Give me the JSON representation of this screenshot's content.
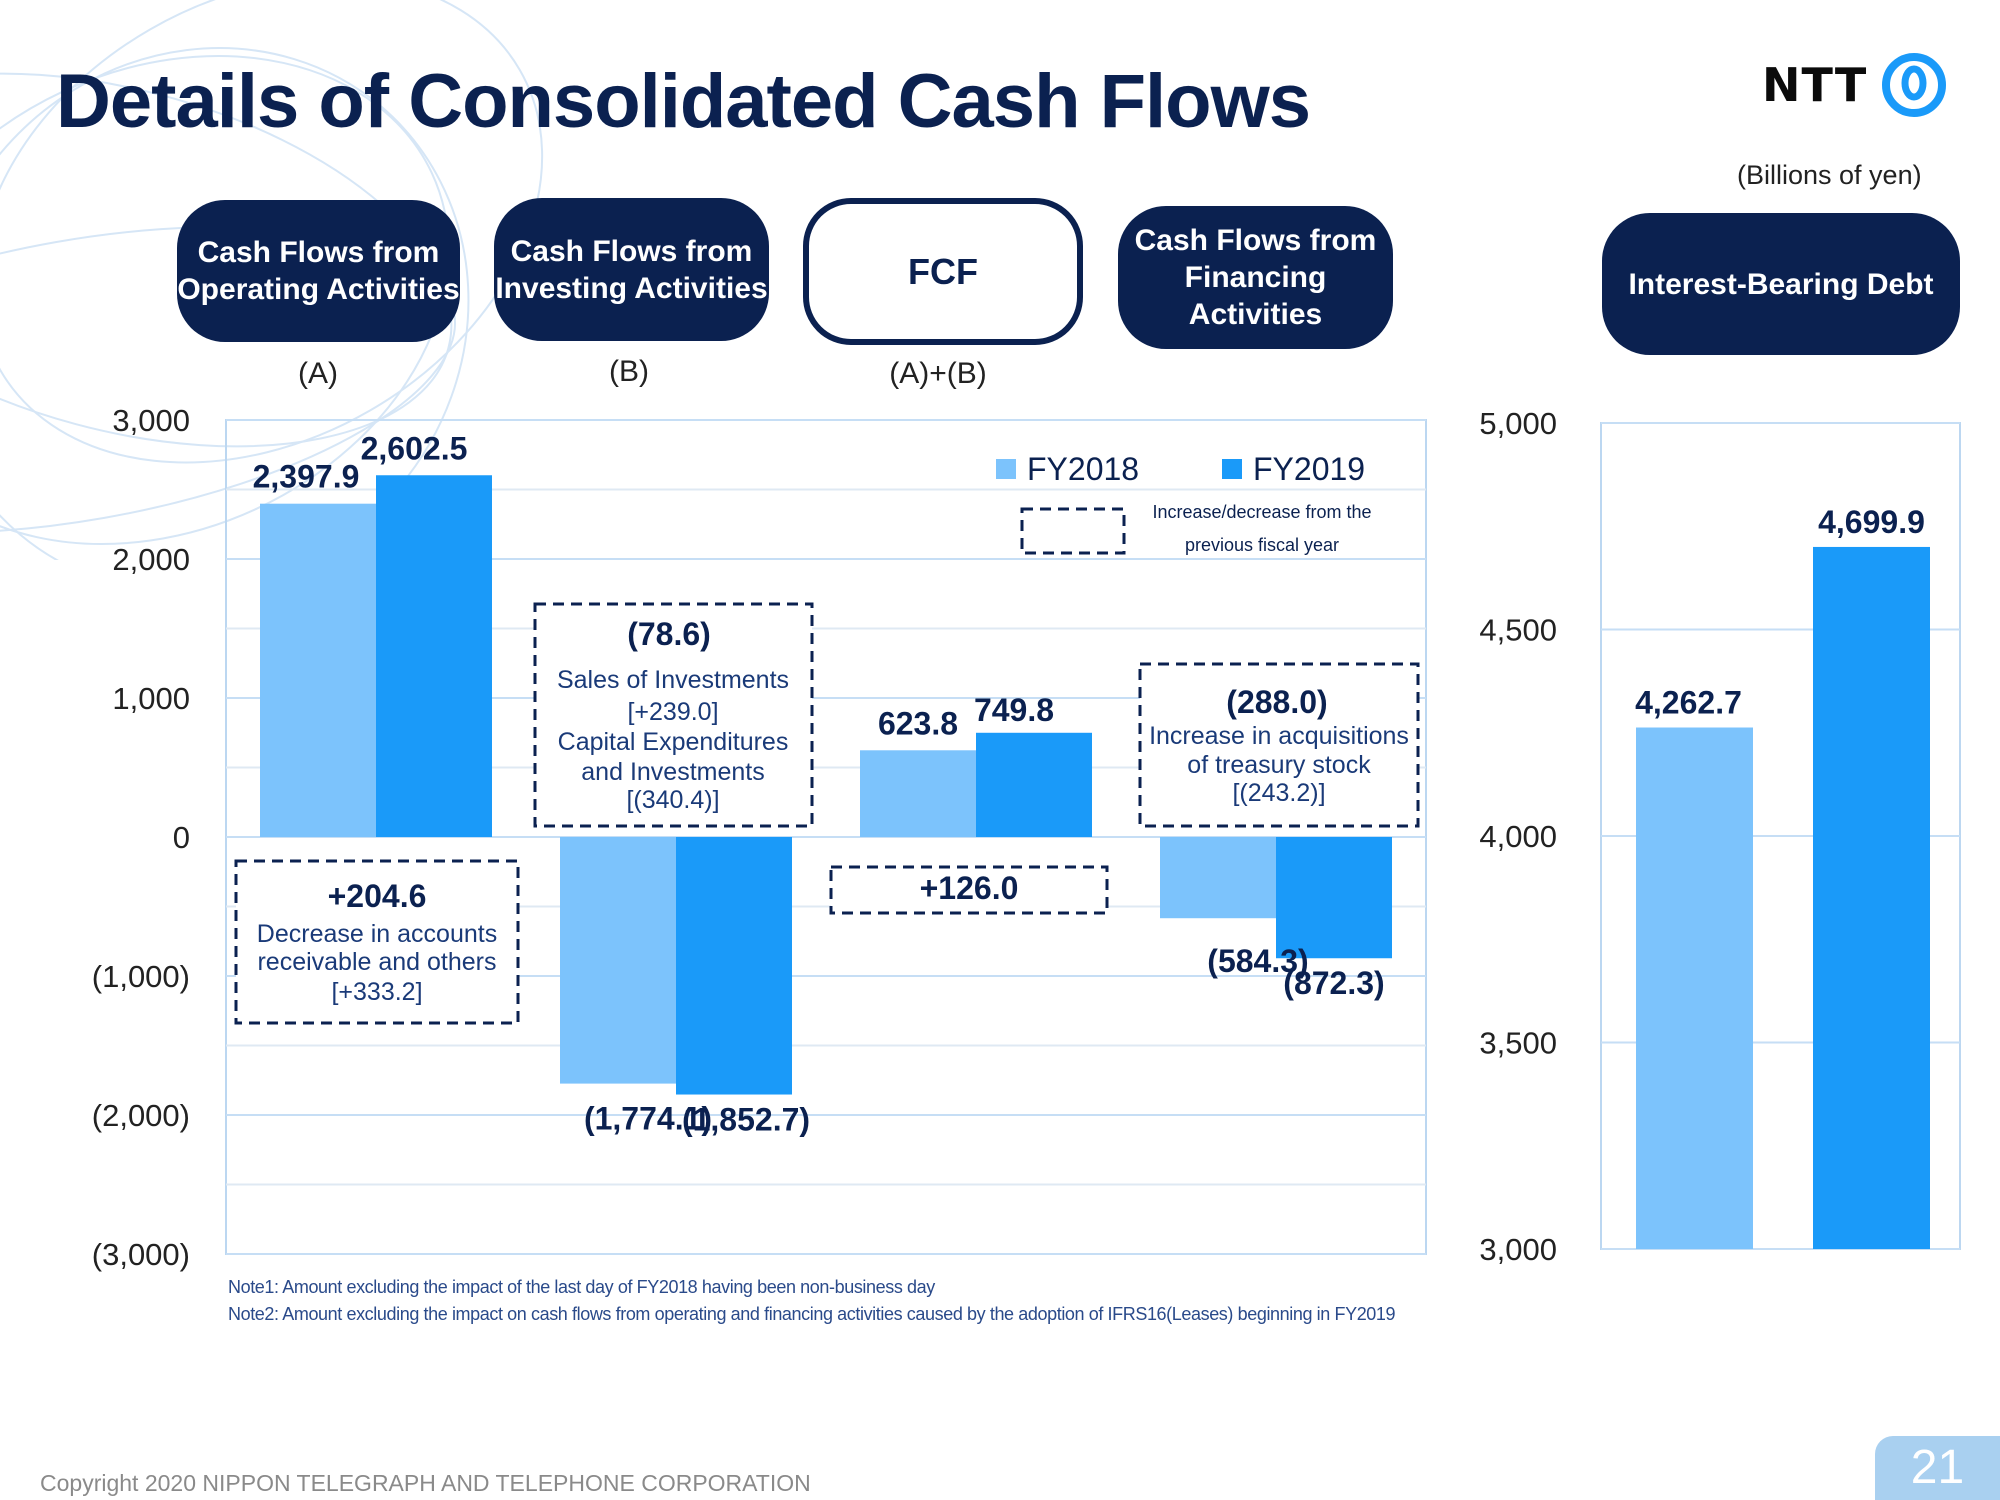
{
  "title": "Details of Consolidated Cash Flows",
  "logo": {
    "text": "NTT"
  },
  "units": "(Billions of yen)",
  "headers": [
    {
      "label": "Cash Flows from Operating Activities",
      "sub": "(A)"
    },
    {
      "label": "Cash Flows from Investing Activities",
      "sub": "(B)"
    },
    {
      "label": "FCF",
      "sub": "(A)+(B)"
    },
    {
      "label": "Cash Flows from Financing Activities",
      "sub": ""
    },
    {
      "label": "Interest-Bearing Debt",
      "sub": ""
    }
  ],
  "legend": {
    "fy2018": "FY2018",
    "fy2019": "FY2019",
    "dashed_line1": "Increase/decrease from the",
    "dashed_line2": "previous fiscal year"
  },
  "colors": {
    "fy2018": "#7cc3fc",
    "fy2019": "#1a9af9",
    "navy": "#0b2150"
  },
  "chart_data": [
    {
      "type": "bar",
      "categories": [
        "Cash Flows from Operating Activities",
        "Cash Flows from Investing Activities",
        "FCF",
        "Cash Flows from Financing Activities"
      ],
      "series": [
        {
          "name": "FY2018",
          "values": [
            2397.9,
            -1774.1,
            623.8,
            -584.3
          ]
        },
        {
          "name": "FY2019",
          "values": [
            2602.5,
            -1852.7,
            749.8,
            -872.3
          ]
        }
      ],
      "value_labels": {
        "FY2018": [
          "2,397.9",
          "(1,774.1)",
          "623.8",
          "(584.3)"
        ],
        "FY2019": [
          "2,602.5",
          "(1,852.7)",
          "749.8",
          "(872.3)"
        ]
      },
      "ylim": [
        -3000,
        3000
      ],
      "yticks": [
        3000,
        2000,
        1000,
        0,
        -1000,
        -2000,
        -3000
      ],
      "ytick_labels": [
        "3,000",
        "2,000",
        "1,000",
        "0",
        "(1,000)",
        "(2,000)",
        "(3,000)"
      ],
      "grid": true,
      "legend_position": "top-right",
      "annotations": [
        {
          "value": "+204.6",
          "lines": [
            "Decrease in accounts",
            "receivable and others",
            "[+333.2]"
          ]
        },
        {
          "value": "(78.6)",
          "lines": [
            "Sales of Investments",
            "[+239.0]",
            "Capital Expenditures",
            "and Investments",
            "[(340.4)]"
          ]
        },
        {
          "value": "+126.0",
          "lines": []
        },
        {
          "value": "(288.0)",
          "lines": [
            "Increase in acquisitions",
            "of  treasury  stock",
            "[(243.2)]"
          ]
        }
      ]
    },
    {
      "type": "bar",
      "categories": [
        "Interest-Bearing Debt"
      ],
      "series": [
        {
          "name": "FY2018",
          "values": [
            4262.7
          ]
        },
        {
          "name": "FY2019",
          "values": [
            4699.9
          ]
        }
      ],
      "value_labels": {
        "FY2018": [
          "4,262.7"
        ],
        "FY2019": [
          "4,699.9"
        ]
      },
      "ylim": [
        3000,
        5000
      ],
      "yticks": [
        5000,
        4500,
        4000,
        3500,
        3000
      ],
      "ytick_labels": [
        "5,000",
        "4,500",
        "4,000",
        "3,500",
        "3,000"
      ],
      "grid": true
    }
  ],
  "notes": [
    "Note1: Amount excluding the impact of the last day of FY2018 having  been non-business day",
    "Note2: Amount excluding the impact on cash flows from operating and financing activities caused by the adoption of IFRS16(Leases)  beginning in FY2019"
  ],
  "copyright": "Copyright 2020 NIPPON TELEGRAPH AND TELEPHONE CORPORATION",
  "page_number": "21"
}
